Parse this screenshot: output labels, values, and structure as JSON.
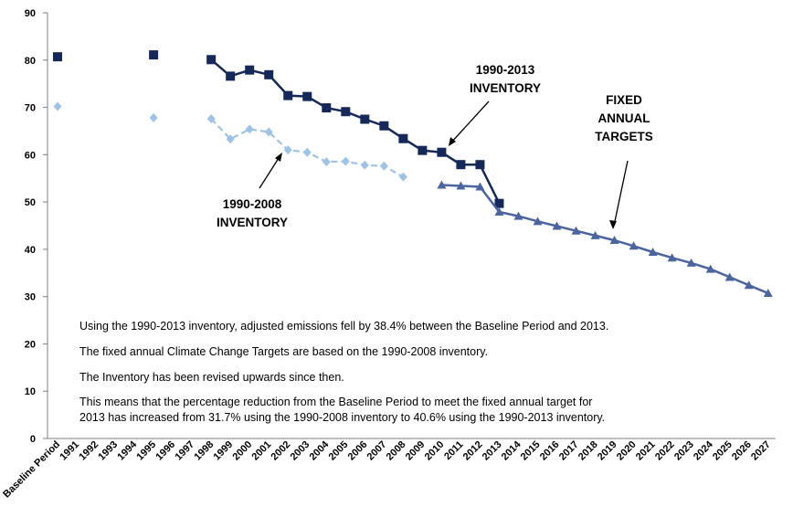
{
  "chart_data": {
    "type": "line",
    "categories": [
      "Baseline Period",
      "1991",
      "1992",
      "1993",
      "1994",
      "1995",
      "1996",
      "1997",
      "1998",
      "1999",
      "2000",
      "2001",
      "2002",
      "2003",
      "2004",
      "2005",
      "2006",
      "2007",
      "2008",
      "2009",
      "2010",
      "2011",
      "2012",
      "2013",
      "2014",
      "2015",
      "2016",
      "2017",
      "2018",
      "2019",
      "2020",
      "2021",
      "2022",
      "2023",
      "2024",
      "2025",
      "2026",
      "2027"
    ],
    "ylim": [
      0,
      90
    ],
    "yticks": [
      0,
      10,
      20,
      30,
      40,
      50,
      60,
      70,
      80,
      90
    ],
    "grid": false,
    "series": [
      {
        "name": "1990-2008 INVENTORY",
        "color": "#9dc3e6",
        "marker": "diamond",
        "dashed": true,
        "values": [
          70.2,
          null,
          null,
          null,
          null,
          67.8,
          null,
          null,
          67.6,
          63.3,
          65.4,
          64.8,
          61.0,
          60.5,
          58.5,
          58.6,
          57.8,
          57.6,
          55.3,
          null,
          null,
          null,
          null,
          null,
          null,
          null,
          null,
          null,
          null,
          null,
          null,
          null,
          null,
          null,
          null,
          null,
          null,
          null
        ]
      },
      {
        "name": "1990-2013 INVENTORY",
        "color": "#14295a",
        "marker": "square",
        "dashed": false,
        "values": [
          80.7,
          null,
          null,
          null,
          null,
          81.1,
          null,
          null,
          80.1,
          76.6,
          77.9,
          76.9,
          72.5,
          72.3,
          69.9,
          69.1,
          67.5,
          66.1,
          63.4,
          60.9,
          60.5,
          57.9,
          57.9,
          49.7,
          null,
          null,
          null,
          null,
          null,
          null,
          null,
          null,
          null,
          null,
          null,
          null,
          null,
          null
        ]
      },
      {
        "name": "FIXED ANNUAL TARGETS",
        "color": "#4a65a0",
        "marker": "triangle",
        "dashed": false,
        "values": [
          null,
          null,
          null,
          null,
          null,
          null,
          null,
          null,
          null,
          null,
          null,
          null,
          null,
          null,
          null,
          null,
          null,
          null,
          null,
          null,
          53.6,
          53.4,
          53.2,
          47.9,
          47.0,
          45.9,
          44.9,
          43.9,
          42.9,
          41.9,
          40.7,
          39.4,
          38.2,
          37.1,
          35.8,
          34.1,
          32.4,
          30.7
        ]
      }
    ],
    "annotations": [
      {
        "lines": [
          "1990-2013",
          "INVENTORY"
        ]
      },
      {
        "lines": [
          "FIXED",
          "ANNUAL",
          "TARGETS"
        ]
      },
      {
        "lines": [
          "1990-2008",
          "INVENTORY"
        ]
      }
    ]
  },
  "notes": [
    "Using the 1990-2013 inventory, adjusted emissions fell by 38.4%  between the Baseline Period and 2013.",
    "The fixed annual Climate Change Targets are based on the 1990-2008 inventory.",
    "The Inventory has been revised upwards since then.",
    "This means that the percentage reduction from the Baseline Period to meet the fixed annual target for",
    "2013 has increased from 31.7% using the 1990-2008 inventory to 40.6% using the 1990-2013 inventory."
  ]
}
